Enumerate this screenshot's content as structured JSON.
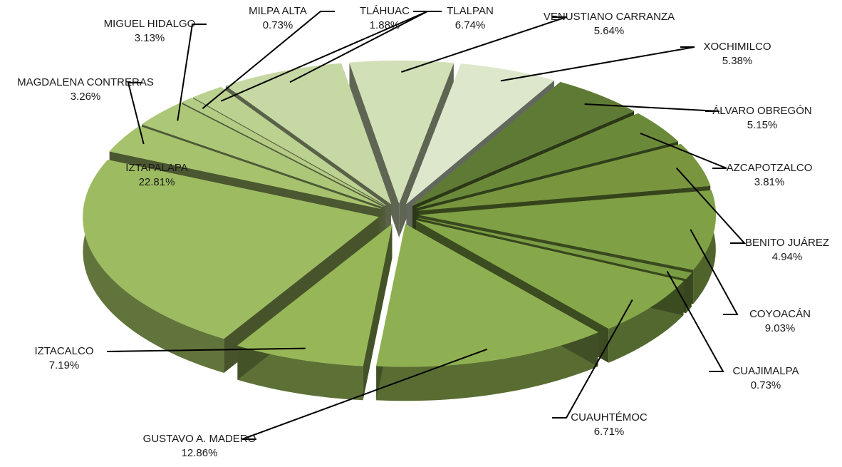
{
  "chart_data": {
    "type": "pie",
    "title": "",
    "style": "3d-exploded",
    "slices": [
      {
        "label": "ÁLVARO OBREGÓN",
        "value": 5.15,
        "pct": "5.15%",
        "color": "#5f7a34"
      },
      {
        "label": "AZCAPOTZALCO",
        "value": 3.81,
        "pct": "3.81%",
        "color": "#6a8a3a"
      },
      {
        "label": "BENITO JUÁREZ",
        "value": 4.94,
        "pct": "4.94%",
        "color": "#79963f"
      },
      {
        "label": "COYOACÁN",
        "value": 9.03,
        "pct": "9.03%",
        "color": "#7fa045"
      },
      {
        "label": "CUAJIMALPA",
        "value": 0.73,
        "pct": "0.73%",
        "color": "#7a9c42"
      },
      {
        "label": "CUAUHTÉMOC",
        "value": 6.71,
        "pct": "6.71%",
        "color": "#86a84a"
      },
      {
        "label": "GUSTAVO A. MADERO",
        "value": 12.86,
        "pct": "12.86%",
        "color": "#8fb052"
      },
      {
        "label": "IZTACALCO",
        "value": 7.19,
        "pct": "7.19%",
        "color": "#96b658"
      },
      {
        "label": "IZTAPALAPA",
        "value": 22.81,
        "pct": "22.81%",
        "color": "#9dbb60"
      },
      {
        "label": "MAGDALENA CONTRERAS",
        "value": 3.26,
        "pct": "3.26%",
        "color": "#a6c26c"
      },
      {
        "label": "MIGUEL HIDALGO",
        "value": 3.13,
        "pct": "3.13%",
        "color": "#adc779"
      },
      {
        "label": "MILPA ALTA",
        "value": 0.73,
        "pct": "0.73%",
        "color": "#b3cb83"
      },
      {
        "label": "TLÁHUAC",
        "value": 1.88,
        "pct": "1.88%",
        "color": "#bbd190"
      },
      {
        "label": "TLALPAN",
        "value": 6.74,
        "pct": "6.74%",
        "color": "#c6d8a3"
      },
      {
        "label": "VENUSTIANO CARRANZA",
        "value": 5.64,
        "pct": "5.64%",
        "color": "#d2e0b8"
      },
      {
        "label": "XOCHIMILCO",
        "value": 5.38,
        "pct": "5.38%",
        "color": "#dde7cc"
      }
    ]
  }
}
